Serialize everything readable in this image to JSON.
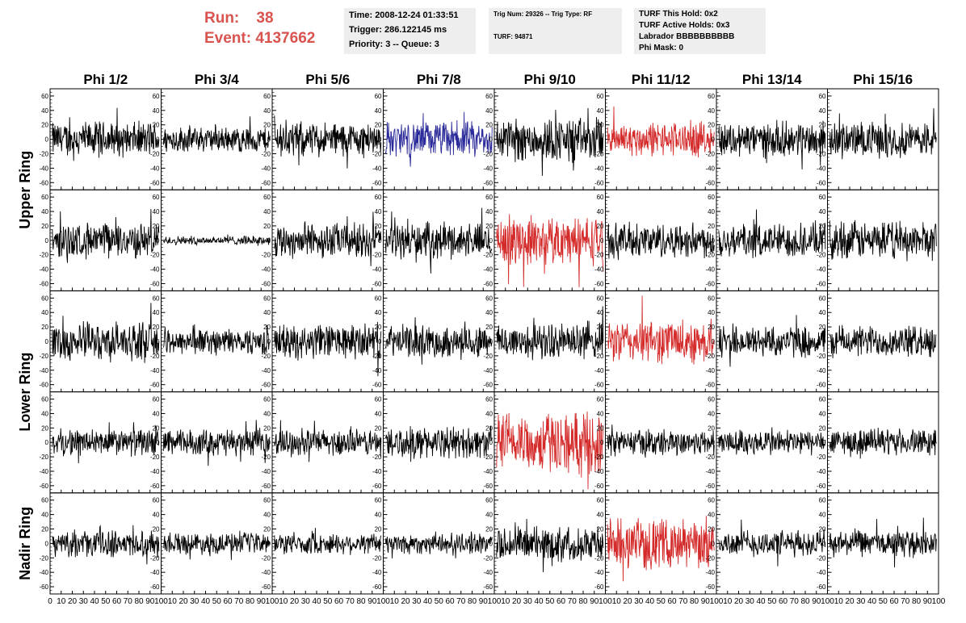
{
  "header": {
    "run_label": "Run:",
    "run_value": "38",
    "event_label": "Event:",
    "event_value": "4137662"
  },
  "info_box_1": {
    "time": "Time: 2008-12-24 01:33:51",
    "trigger": "Trigger: 286.122145 ms",
    "priority": "Priority: 3 -- Queue: 3"
  },
  "info_box_2": {
    "trig": "Trig Num: 29326 -- Trig Type: RF",
    "turf": "TURF: 94871"
  },
  "info_box_3": {
    "this_hold": "TURF This Hold: 0x2",
    "active_holds": "TURF Active Holds: 0x3",
    "labrador": "Labrador BBBBBBBBBB",
    "phi_mask": "Phi Mask: 0"
  },
  "colors": {
    "trace": "#000000",
    "triggered": "#d42a2a",
    "highlight": "#2a2a9a",
    "header_text": "#d9534f",
    "info_box_bg": "#eeeeee"
  },
  "chart_data": {
    "type": "line",
    "columns": [
      "Phi 1/2",
      "Phi 3/4",
      "Phi 5/6",
      "Phi 7/8",
      "Phi 9/10",
      "Phi 11/12",
      "Phi 13/14",
      "Phi 15/16"
    ],
    "ring_labels": [
      {
        "text": "Upper Ring"
      },
      {
        "text": "Lower Ring"
      },
      {
        "text": "Nadir Ring"
      }
    ],
    "xlim": [
      0,
      100
    ],
    "x_ticks": [
      0,
      10,
      20,
      30,
      40,
      50,
      60,
      70,
      80,
      90,
      100
    ],
    "x_tick_labels": [
      "0",
      "10",
      "20",
      "30",
      "40",
      "50",
      "60",
      "70",
      "80",
      "90",
      "100"
    ],
    "ylim": [
      -70,
      70
    ],
    "y_ticks": [
      -60,
      -40,
      -20,
      0,
      20,
      40,
      60
    ],
    "y_tick_labels": [
      "-60",
      "-40",
      "-20",
      "0",
      "20",
      "40",
      "60"
    ],
    "rows": 5,
    "approx_amplitude": [
      [
        20,
        15,
        20,
        20,
        25,
        20,
        20,
        20
      ],
      [
        20,
        5,
        20,
        20,
        28,
        20,
        20,
        22
      ],
      [
        22,
        15,
        20,
        18,
        20,
        25,
        18,
        18
      ],
      [
        15,
        15,
        15,
        18,
        35,
        15,
        15,
        15
      ],
      [
        15,
        12,
        12,
        12,
        20,
        28,
        15,
        15
      ]
    ],
    "trace_color_key": [
      [
        "trace",
        "trace",
        "trace",
        "highlight",
        "trace",
        "triggered",
        "trace",
        "trace"
      ],
      [
        "trace",
        "trace",
        "trace",
        "trace",
        "triggered",
        "trace",
        "trace",
        "trace"
      ],
      [
        "trace",
        "trace",
        "trace",
        "trace",
        "trace",
        "triggered",
        "trace",
        "trace"
      ],
      [
        "trace",
        "trace",
        "trace",
        "trace",
        "triggered",
        "trace",
        "trace",
        "trace"
      ],
      [
        "trace",
        "trace",
        "trace",
        "trace",
        "trace",
        "triggered",
        "trace",
        "trace"
      ]
    ]
  }
}
